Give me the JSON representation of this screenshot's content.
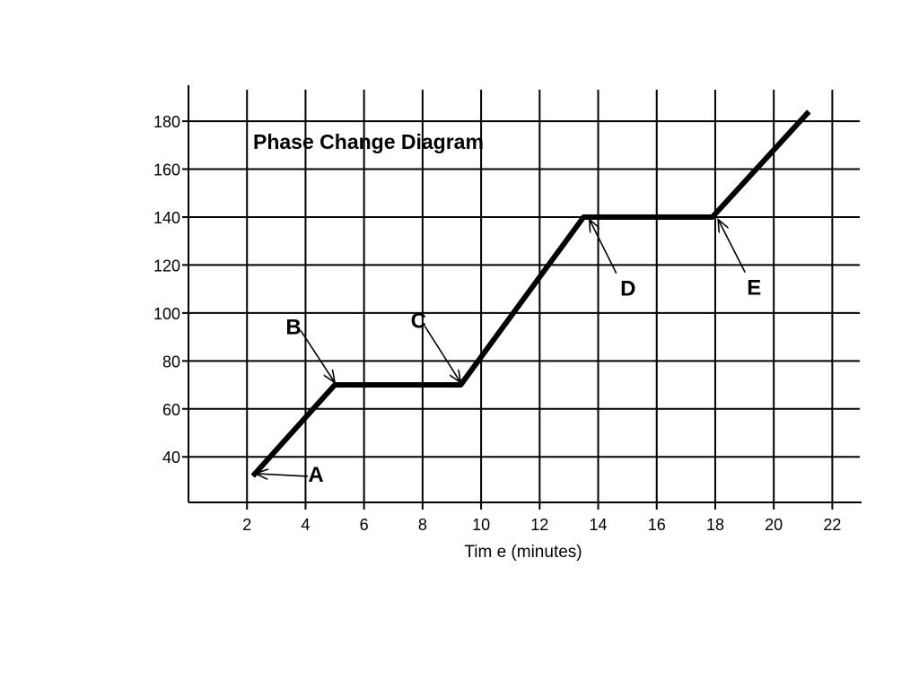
{
  "chart_data": {
    "type": "line",
    "title": "Phase Change Diagram",
    "xlabel": "Tim e (minutes)",
    "ylabel": "",
    "xlim": [
      0,
      23
    ],
    "ylim": [
      21,
      195
    ],
    "x_ticks": [
      2,
      4,
      6,
      8,
      10,
      12,
      14,
      16,
      18,
      20,
      22
    ],
    "y_ticks": [
      40,
      60,
      80,
      100,
      120,
      140,
      160,
      180
    ],
    "grid": true,
    "x": [
      2.2,
      5.0,
      9.3,
      13.5,
      17.9,
      21.2
    ],
    "y": [
      32,
      70,
      70,
      140,
      140,
      184
    ],
    "annotations": [
      {
        "label": "A",
        "x": 2.3,
        "y": 33
      },
      {
        "label": "B",
        "x": 5.0,
        "y": 71
      },
      {
        "label": "C",
        "x": 9.3,
        "y": 71
      },
      {
        "label": "D",
        "x": 13.7,
        "y": 139
      },
      {
        "label": "E",
        "x": 18.1,
        "y": 139
      }
    ]
  }
}
